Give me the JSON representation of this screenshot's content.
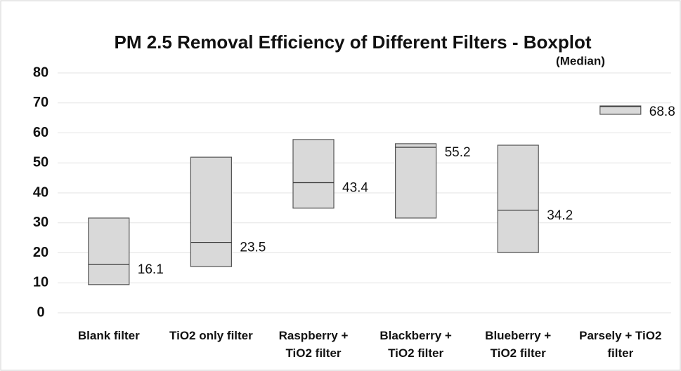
{
  "chart_data": {
    "type": "box",
    "title": "PM 2.5 Removal Efficiency of Different Filters - Boxplot",
    "subtitle": "(Median)",
    "categories": [
      "Blank filter",
      "TiO2 only filter",
      "Raspberry + TiO2 filter",
      "Blackberry + TiO2 filter",
      "Blueberry + TiO2 filter",
      "Parsely + TiO2 filter"
    ],
    "q1": [
      9.4,
      15.4,
      34.9,
      31.6,
      20.1,
      66.2
    ],
    "median": [
      16.1,
      23.5,
      43.4,
      55.2,
      34.2,
      68.8
    ],
    "q3": [
      31.6,
      51.9,
      57.8,
      56.4,
      55.9,
      69.0
    ],
    "color": "#d9d9d9",
    "ylim": [
      0,
      80
    ],
    "yticks": [
      0,
      10,
      20,
      30,
      40,
      50,
      60,
      70,
      80
    ],
    "grid": true
  }
}
